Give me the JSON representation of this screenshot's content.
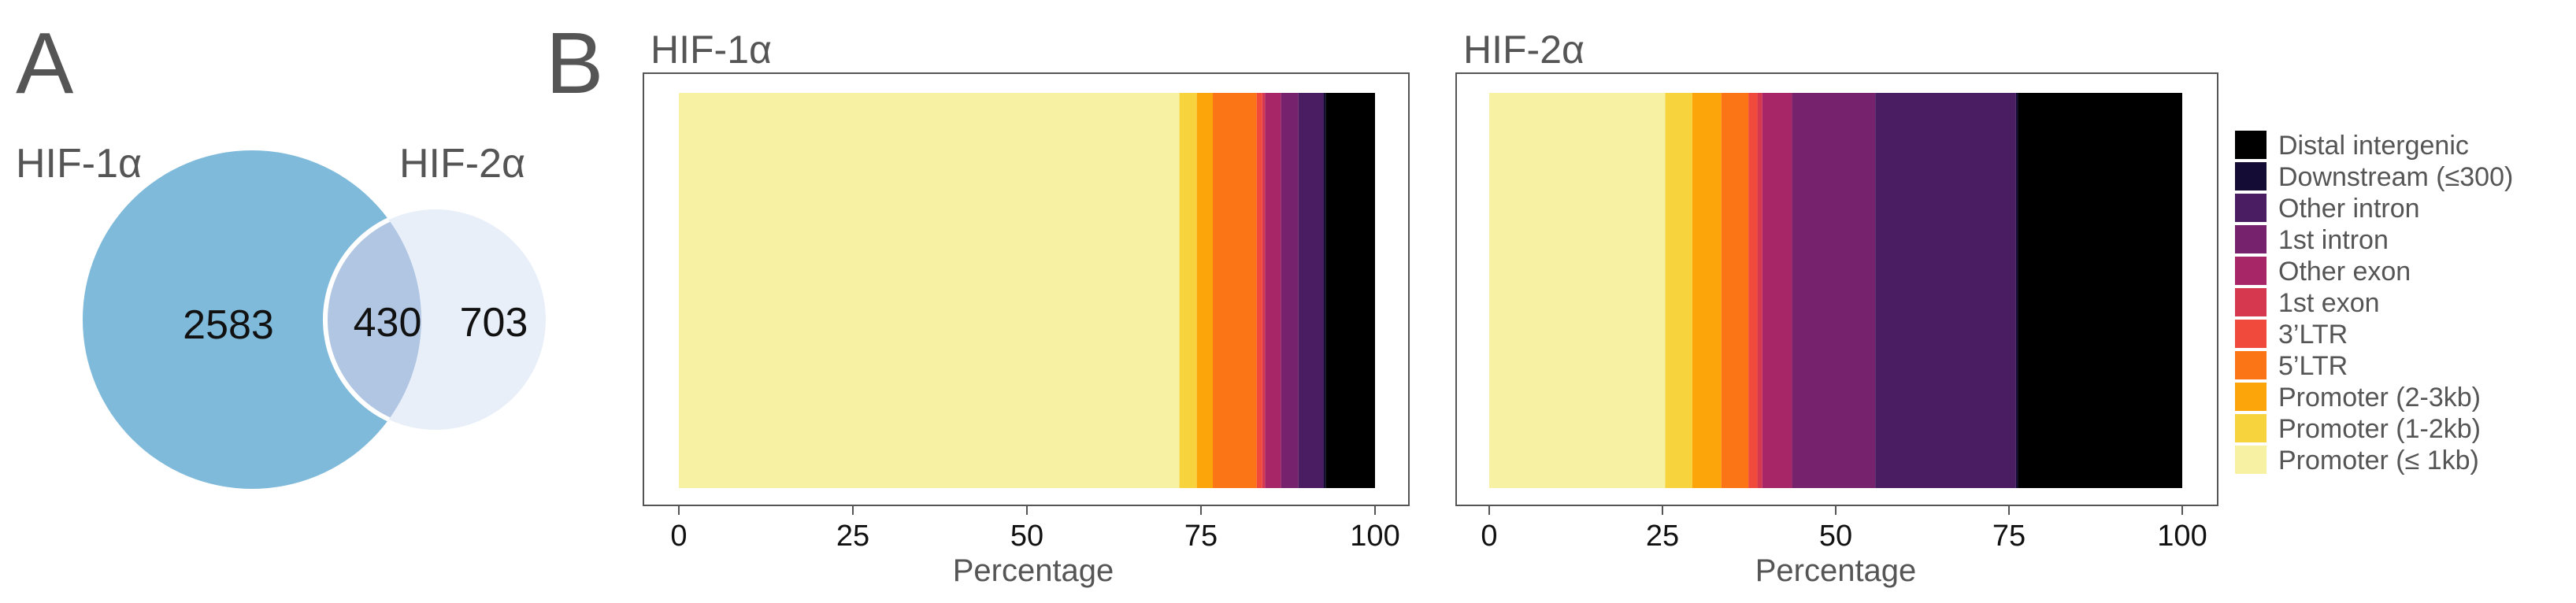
{
  "panel_labels": {
    "a": "A",
    "b": "B"
  },
  "venn": {
    "set1_label": "HIF-1α",
    "set2_label": "HIF-2α",
    "set1_only": "2583",
    "overlap": "430",
    "set2_only": "703",
    "colors": {
      "set1": "#7fbadb",
      "set2": "#e8eff9",
      "overlap": "#b0c6e3"
    }
  },
  "chart_data": [
    {
      "type": "bar",
      "orientation": "horizontal-stacked",
      "title": "HIF-1α",
      "xlabel": "Percentage",
      "xlim": [
        0,
        100
      ],
      "xticks": [
        0,
        25,
        50,
        75,
        100
      ],
      "grid": false,
      "categories": [
        "Promoter (≤ 1kb)",
        "Promoter (1-2kb)",
        "Promoter (2-3kb)",
        "5’LTR",
        "3’LTR",
        "1st exon",
        "Other exon",
        "1st intron",
        "Other intron",
        "Downstream (≤300)",
        "Distal intergenic"
      ],
      "values": [
        71.9,
        2.5,
        2.3,
        6.3,
        0.8,
        0.4,
        2.3,
        2.5,
        3.6,
        0.3,
        7.1
      ]
    },
    {
      "type": "bar",
      "orientation": "horizontal-stacked",
      "title": "HIF-2α",
      "xlabel": "Percentage",
      "xlim": [
        0,
        100
      ],
      "xticks": [
        0,
        25,
        50,
        75,
        100
      ],
      "grid": false,
      "categories": [
        "Promoter (≤ 1kb)",
        "Promoter (1-2kb)",
        "Promoter (2-3kb)",
        "5’LTR",
        "3’LTR",
        "1st exon",
        "Other exon",
        "1st intron",
        "Other intron",
        "Downstream (≤300)",
        "Distal intergenic"
      ],
      "values": [
        25.4,
        3.9,
        4.2,
        3.9,
        1.3,
        0.7,
        4.3,
        12.0,
        20.3,
        0.3,
        23.7
      ]
    }
  ],
  "legend": {
    "placement": "right",
    "items": [
      {
        "label": "Distal intergenic",
        "color": "#000000"
      },
      {
        "label": "Downstream (≤300)",
        "color": "#140c35"
      },
      {
        "label": "Other intron",
        "color": "#4a1c62"
      },
      {
        "label": "1st intron",
        "color": "#77226d"
      },
      {
        "label": "Other exon",
        "color": "#a72667"
      },
      {
        "label": "1st exon",
        "color": "#d6384f"
      },
      {
        "label": "3’LTR",
        "color": "#f04a3c"
      },
      {
        "label": "5’LTR",
        "color": "#fb7516"
      },
      {
        "label": "Promoter (2-3kb)",
        "color": "#fca50a"
      },
      {
        "label": "Promoter (1-2kb)",
        "color": "#f7d33e"
      },
      {
        "label": "Promoter (≤ 1kb)",
        "color": "#f6f1a3"
      }
    ]
  }
}
